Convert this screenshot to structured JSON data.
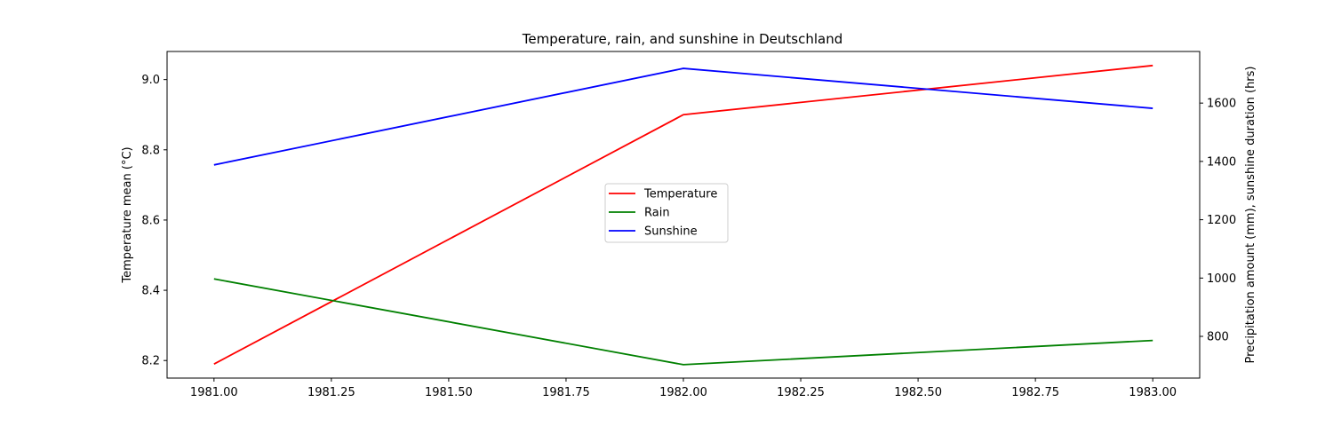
{
  "chart_data": {
    "type": "line",
    "title": "Temperature, rain, and sunshine in Deutschland",
    "x": [
      1981,
      1982,
      1983
    ],
    "xlim": [
      1980.9,
      1983.1
    ],
    "xticks": [
      1981.0,
      1981.25,
      1981.5,
      1981.75,
      1982.0,
      1982.25,
      1982.5,
      1982.75,
      1983.0
    ],
    "xtick_labels": [
      "1981.00",
      "1981.25",
      "1981.50",
      "1981.75",
      "1982.00",
      "1982.25",
      "1982.50",
      "1982.75",
      "1983.00"
    ],
    "left_axis": {
      "label": "Temperature mean (°C)",
      "ylim": [
        8.15,
        9.08
      ],
      "ticks": [
        8.2,
        8.4,
        8.6,
        8.8,
        9.0
      ],
      "tick_labels": [
        "8.2",
        "8.4",
        "8.6",
        "8.8",
        "9.0"
      ]
    },
    "right_axis": {
      "label": "Precipitation amount (mm), sunshine duration (hrs)",
      "ylim": [
        657,
        1777
      ],
      "ticks": [
        800,
        1000,
        1200,
        1400,
        1600
      ],
      "tick_labels": [
        "800",
        "1000",
        "1200",
        "1400",
        "1600"
      ]
    },
    "series": [
      {
        "name": "Temperature",
        "axis": "left",
        "color": "#ff0000",
        "values": [
          8.19,
          8.9,
          9.04
        ]
      },
      {
        "name": "Rain",
        "axis": "right",
        "color": "#008000",
        "values": [
          997,
          703,
          786
        ]
      },
      {
        "name": "Sunshine",
        "axis": "right",
        "color": "#0000ff",
        "values": [
          1388,
          1719,
          1582
        ]
      }
    ],
    "legend_position": "center",
    "grid": false
  }
}
